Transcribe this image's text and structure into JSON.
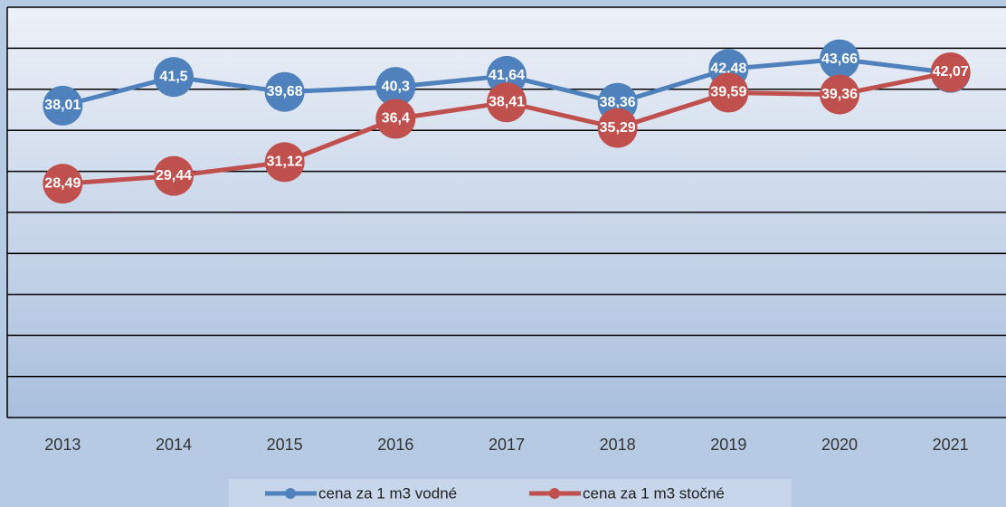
{
  "chart_data": {
    "type": "line",
    "categories": [
      "2013",
      "2014",
      "2015",
      "2016",
      "2017",
      "2018",
      "2019",
      "2020",
      "2021"
    ],
    "series": [
      {
        "name": "cena za 1 m3 vodné",
        "color": "#4f81bd",
        "values": [
          38.01,
          41.5,
          39.68,
          40.3,
          41.64,
          38.36,
          42.48,
          43.66,
          42.0
        ],
        "value_labels": [
          "38,01",
          "41,5",
          "39,68",
          "40,3",
          "41,64",
          "38,36",
          "42,48",
          "43,66",
          "42,0"
        ]
      },
      {
        "name": "cena za 1 m3 stočné",
        "color": "#c0504d",
        "values": [
          28.49,
          29.44,
          31.12,
          36.4,
          38.41,
          35.29,
          39.59,
          39.36,
          42.07
        ],
        "value_labels": [
          "28,49",
          "29,44",
          "31,12",
          "36,4",
          "38,41",
          "35,29",
          "39,59",
          "39,36",
          "42,07"
        ]
      }
    ],
    "ylim": [
      0,
      50
    ],
    "yticks": [
      0,
      5,
      10,
      15,
      20,
      25,
      30,
      35,
      40,
      45,
      50
    ],
    "grid": true
  }
}
